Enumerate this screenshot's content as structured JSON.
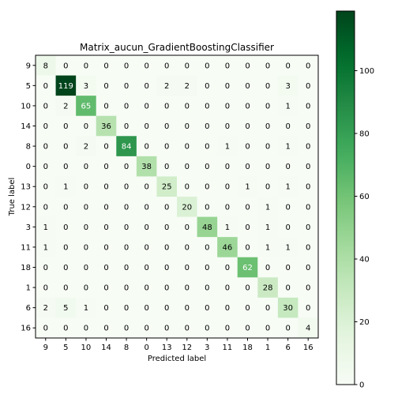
{
  "chart_data": {
    "type": "heatmap",
    "title": "Matrix_aucun_GradientBoostingClassifier",
    "xlabel": "Predicted label",
    "ylabel": "True label",
    "labels": [
      "9",
      "5",
      "10",
      "14",
      "8",
      "0",
      "13",
      "12",
      "3",
      "11",
      "18",
      "1",
      "6",
      "16"
    ],
    "matrix": [
      [
        8,
        0,
        0,
        0,
        0,
        0,
        0,
        0,
        0,
        0,
        0,
        0,
        0,
        0
      ],
      [
        0,
        119,
        3,
        0,
        0,
        0,
        2,
        2,
        0,
        0,
        0,
        0,
        3,
        0
      ],
      [
        0,
        2,
        65,
        0,
        0,
        0,
        0,
        0,
        0,
        0,
        0,
        0,
        1,
        0
      ],
      [
        0,
        0,
        0,
        36,
        0,
        0,
        0,
        0,
        0,
        0,
        0,
        0,
        0,
        0
      ],
      [
        0,
        0,
        2,
        0,
        84,
        0,
        0,
        0,
        0,
        1,
        0,
        0,
        1,
        0
      ],
      [
        0,
        0,
        0,
        0,
        0,
        38,
        0,
        0,
        0,
        0,
        0,
        0,
        0,
        0
      ],
      [
        0,
        1,
        0,
        0,
        0,
        0,
        25,
        0,
        0,
        0,
        1,
        0,
        1,
        0
      ],
      [
        0,
        0,
        0,
        0,
        0,
        0,
        0,
        20,
        0,
        0,
        0,
        1,
        0,
        0
      ],
      [
        1,
        0,
        0,
        0,
        0,
        0,
        0,
        0,
        48,
        1,
        0,
        1,
        0,
        0
      ],
      [
        1,
        0,
        0,
        0,
        0,
        0,
        0,
        0,
        0,
        46,
        0,
        1,
        1,
        0
      ],
      [
        0,
        0,
        0,
        0,
        0,
        0,
        0,
        0,
        0,
        0,
        62,
        0,
        0,
        0
      ],
      [
        0,
        0,
        0,
        0,
        0,
        0,
        0,
        0,
        0,
        0,
        0,
        28,
        0,
        0
      ],
      [
        2,
        5,
        1,
        0,
        0,
        0,
        0,
        0,
        0,
        0,
        0,
        0,
        30,
        0
      ],
      [
        0,
        0,
        0,
        0,
        0,
        0,
        0,
        0,
        0,
        0,
        0,
        0,
        0,
        4
      ]
    ],
    "colorbar": {
      "min": 0,
      "max": 119,
      "ticks": [
        0,
        20,
        40,
        60,
        80,
        100
      ]
    },
    "colormap": [
      "#f7fcf5",
      "#e5f5e0",
      "#c7e9c0",
      "#a1d99b",
      "#74c476",
      "#41ab5d",
      "#238b45",
      "#006d2c",
      "#00441b"
    ],
    "text_colors": {
      "light": "#ffffff",
      "dark": "#000000"
    },
    "grid": false
  }
}
